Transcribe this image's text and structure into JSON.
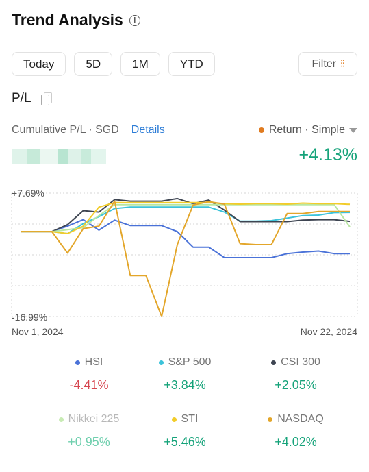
{
  "header": {
    "title": "Trend Analysis"
  },
  "range_tabs": [
    "Today",
    "5D",
    "1M",
    "YTD"
  ],
  "filter": {
    "label": "Filter"
  },
  "pl": {
    "label": "P/L"
  },
  "cumulative": {
    "label": "Cumulative P/L · SGD",
    "details": "Details",
    "return_mode": "Return · Simple"
  },
  "summary": {
    "return_pct": "+4.13%"
  },
  "colors": {
    "positive": "#16a37a",
    "negative": "#d6454f",
    "accent": "#e07b20",
    "link": "#2a7bd6"
  },
  "chart_data": {
    "type": "line",
    "y_max_label": "+7.69%",
    "y_min_label": "-16.99%",
    "ylim": [
      -16.99,
      7.69
    ],
    "x_start_label": "Nov 1, 2024",
    "x_end_label": "Nov 22, 2024",
    "grid": "dashed-horizontal",
    "series": [
      {
        "name": "HSI",
        "color": "#4a72d8",
        "values": [
          0,
          0,
          0,
          1.1,
          2.4,
          0.3,
          2.3,
          1.2,
          1.2,
          1.2,
          0,
          -3.1,
          -3.1,
          -5.2,
          -5.2,
          -5.2,
          -5.2,
          -4.4,
          -4.1,
          -3.9,
          -4.4,
          -4.4
        ]
      },
      {
        "name": "S&P 500",
        "color": "#3cc3da",
        "values": [
          0,
          0,
          0,
          -0.4,
          1.6,
          3.0,
          4.6,
          4.9,
          4.9,
          4.9,
          4.9,
          4.9,
          4.9,
          3.9,
          2.1,
          2.1,
          2.2,
          2.7,
          3.2,
          3.3,
          3.8,
          3.84
        ]
      },
      {
        "name": "CSI 300",
        "color": "#3e4552",
        "values": [
          0,
          0,
          0,
          1.4,
          4.2,
          3.9,
          6.4,
          6.1,
          6.1,
          6.1,
          6.6,
          5.6,
          6.3,
          4.3,
          2.0,
          2.0,
          2.0,
          2.0,
          2.3,
          2.4,
          2.4,
          2.05
        ]
      },
      {
        "name": "Nikkei 225",
        "color": "#b9e7a2",
        "values": [
          0,
          0,
          0,
          0.4,
          0.8,
          3.2,
          5.4,
          5.4,
          5.4,
          5.4,
          5.4,
          5.4,
          5.4,
          5.4,
          5.4,
          5.4,
          5.4,
          5.4,
          5.4,
          5.4,
          5.4,
          0.95
        ]
      },
      {
        "name": "STI",
        "color": "#f2cc2a",
        "values": [
          0,
          0,
          0,
          -0.4,
          1.1,
          4.9,
          5.8,
          5.8,
          5.8,
          5.8,
          5.8,
          5.8,
          5.8,
          5.6,
          5.5,
          5.6,
          5.6,
          5.5,
          5.7,
          5.6,
          5.6,
          5.46
        ]
      },
      {
        "name": "NASDAQ",
        "color": "#e3a62a",
        "values": [
          0,
          0,
          0,
          -4.3,
          0.6,
          1.1,
          6.1,
          -8.8,
          -8.8,
          -16.99,
          -2.6,
          5.3,
          6.0,
          5.5,
          -2.4,
          -2.6,
          -2.6,
          3.6,
          3.6,
          4.02,
          4.02,
          4.02
        ]
      }
    ]
  },
  "legend": [
    {
      "name": "HSI",
      "value": "-4.41%",
      "dot": "#4a72d8",
      "value_color": "#d6454f",
      "dim": false
    },
    {
      "name": "S&P 500",
      "value": "+3.84%",
      "dot": "#3cc3da",
      "value_color": "#16a37a",
      "dim": false
    },
    {
      "name": "CSI 300",
      "value": "+2.05%",
      "dot": "#3e4552",
      "value_color": "#16a37a",
      "dim": false
    },
    {
      "name": "Nikkei 225",
      "value": "+0.95%",
      "dot": "#c8ebb4",
      "value_color": "#6fcfae",
      "dim": true
    },
    {
      "name": "STI",
      "value": "+5.46%",
      "dot": "#f2cc2a",
      "value_color": "#16a37a",
      "dim": false
    },
    {
      "name": "NASDAQ",
      "value": "+4.02%",
      "dot": "#e3a62a",
      "value_color": "#16a37a",
      "dim": false
    }
  ]
}
